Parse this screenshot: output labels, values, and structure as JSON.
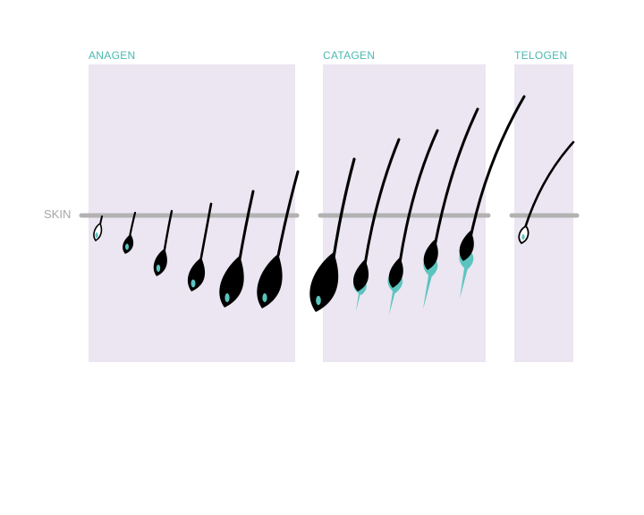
{
  "diagram": {
    "skin_label": "SKIN",
    "phases": [
      {
        "label": "ANAGEN"
      },
      {
        "label": "CATAGEN"
      },
      {
        "label": "TELOGEN"
      }
    ],
    "colors": {
      "panel": "#ebe6f1",
      "skin_line": "#b2b2b2",
      "label_accent": "#4bb8b2",
      "skin_label": "#a7a7a7",
      "hair": "#000000",
      "papilla": "#5cc4bf"
    }
  }
}
